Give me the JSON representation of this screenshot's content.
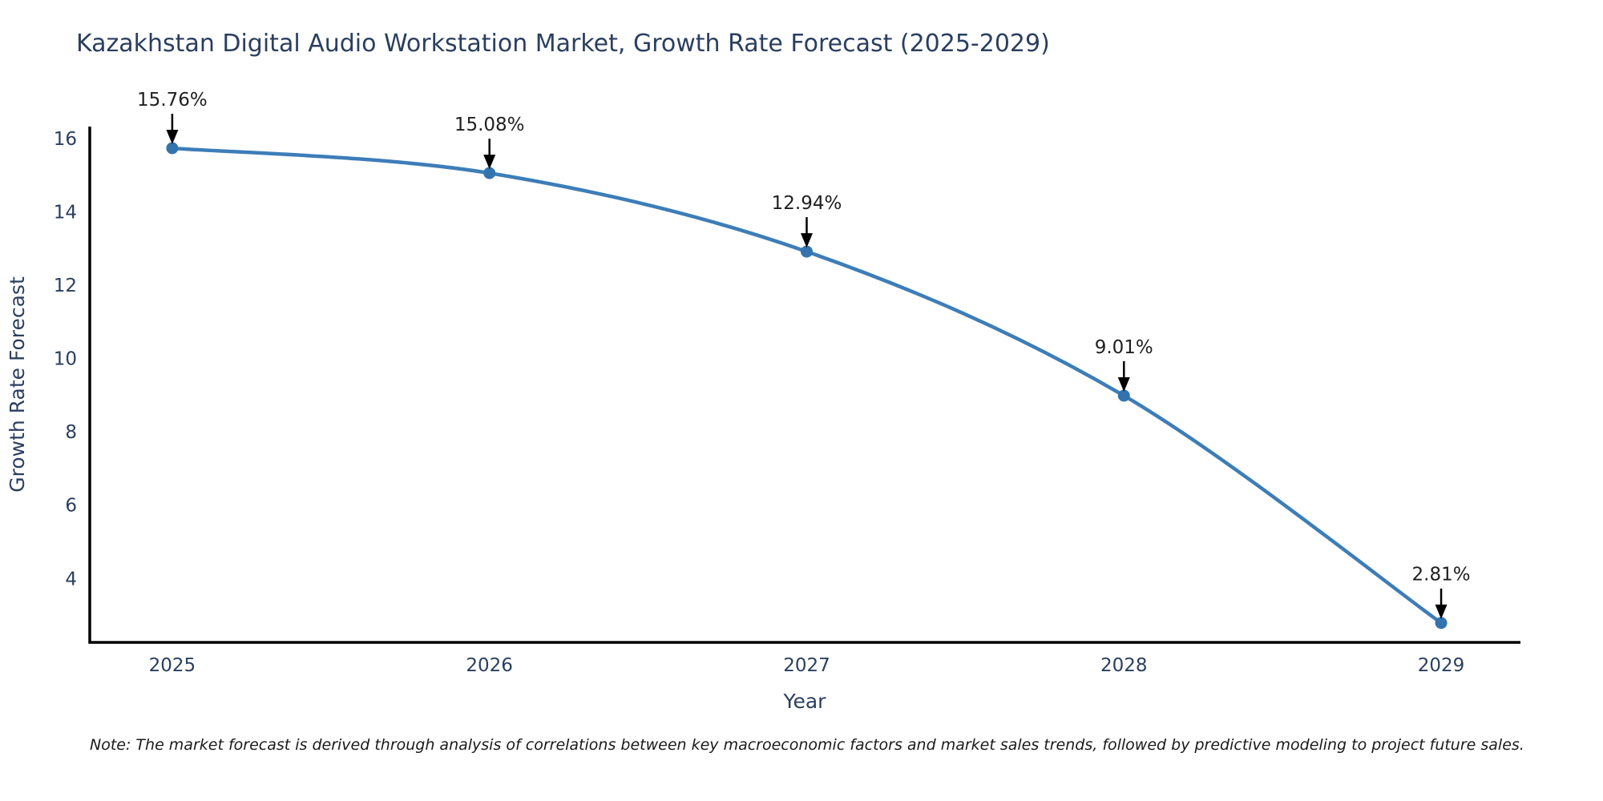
{
  "chart": {
    "title": "Kazakhstan Digital Audio Workstation Market, Growth Rate Forecast (2025-2029)",
    "xlabel": "Year",
    "ylabel": "Growth Rate Forecast",
    "note": "Note: The market forecast is derived through analysis of correlations between key macroeconomic factors and market sales trends, followed by predictive modeling to project future sales."
  },
  "chart_data": {
    "type": "line",
    "title": "Kazakhstan Digital Audio Workstation Market, Growth Rate Forecast (2025-2029)",
    "xlabel": "Year",
    "ylabel": "Growth Rate Forecast",
    "x": [
      2025,
      2026,
      2027,
      2028,
      2029
    ],
    "values": [
      15.76,
      15.08,
      12.94,
      9.01,
      2.81
    ],
    "point_labels": [
      "15.76%",
      "15.08%",
      "12.94%",
      "9.01%",
      "2.81%"
    ],
    "x_tick_labels": [
      "2025",
      "2026",
      "2027",
      "2028",
      "2029"
    ],
    "y_ticks": [
      4,
      6,
      8,
      10,
      12,
      14,
      16
    ],
    "xlim": [
      2024.74,
      2029.25
    ],
    "ylim": [
      2.28,
      16.35
    ],
    "grid": false,
    "legend": "none",
    "line_shape": "spline",
    "line_color": "#3d7db8",
    "marker_color": "#3474ae",
    "axis_color": "#000000",
    "tick_label_color": "#2a3f5f",
    "annotation_text_color": "#1f1f1f",
    "annotation_arrow_color": "#000000"
  }
}
